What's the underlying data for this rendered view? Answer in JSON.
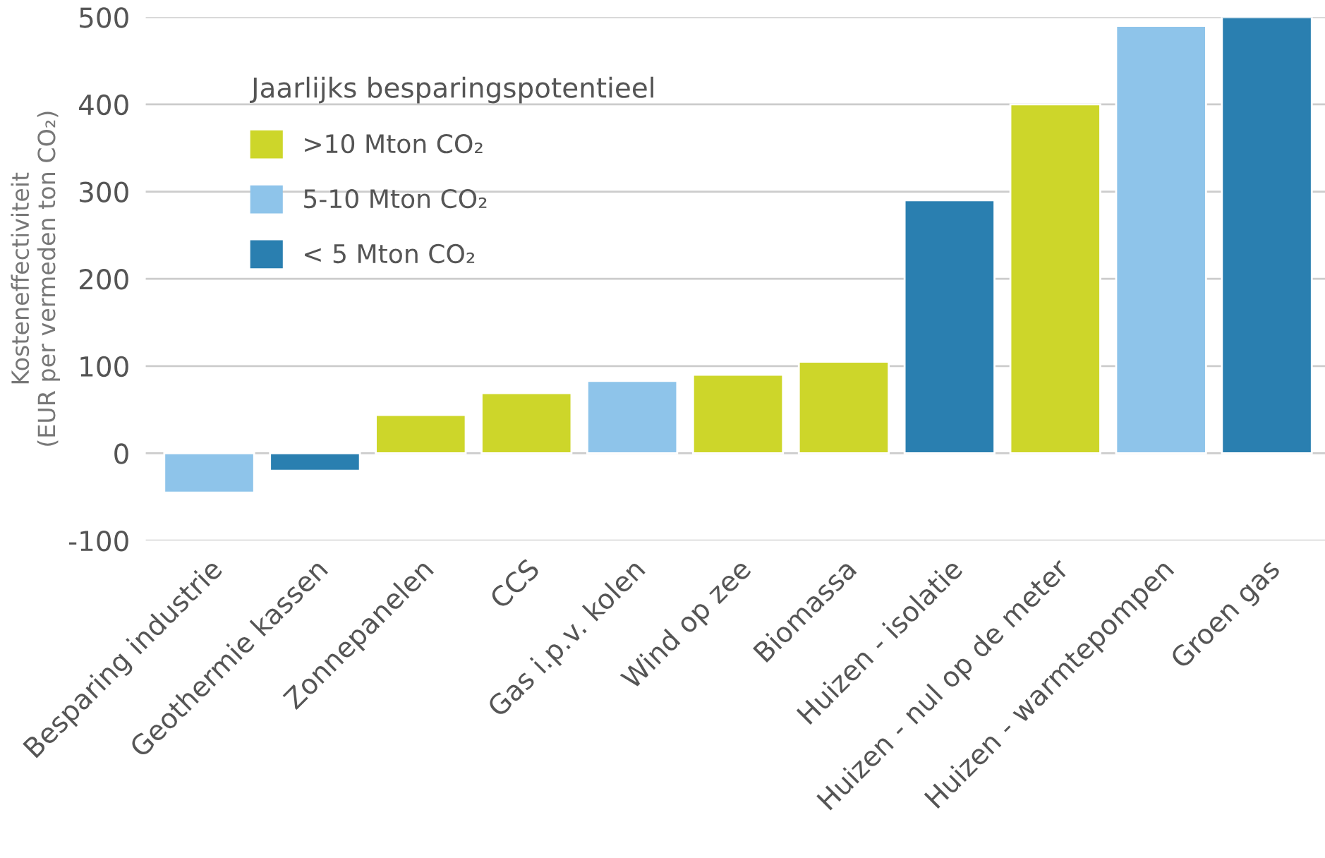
{
  "chart_data": {
    "type": "bar",
    "ylabel": "Kosteneffectiviteit\n(EUR per vermeden ton CO₂)",
    "legend_title": "Jaarlijks besparingspotentieel",
    "legend": "top left",
    "grid": "y",
    "categories": [
      "Besparing industrie",
      "Geothermie kassen",
      "Zonnepanelen",
      "CCS",
      "Gas i.p.v. kolen",
      "Wind op zee",
      "Biomassa",
      "Huizen - isolatie",
      "Huizen - nul op de meter",
      "Huizen - warmtepompen",
      "Groen gas"
    ],
    "series": [
      {
        "name": ">10 Mton CO₂",
        "color": "#cdd62a",
        "values": [
          null,
          null,
          44,
          69,
          null,
          90,
          105,
          null,
          400,
          null,
          null
        ]
      },
      {
        "name": "5-10 Mton CO₂",
        "color": "#8ec4ea",
        "values": [
          -45,
          null,
          null,
          null,
          83,
          null,
          null,
          null,
          null,
          490,
          null
        ]
      },
      {
        "name": "< 5 Mton CO₂",
        "color": "#2a7fb0",
        "values": [
          null,
          -20,
          null,
          null,
          null,
          null,
          null,
          290,
          null,
          null,
          500
        ]
      }
    ],
    "ylim": [
      -100,
      500
    ],
    "yticks": [
      -100,
      0,
      100,
      200,
      300,
      400,
      500
    ]
  }
}
